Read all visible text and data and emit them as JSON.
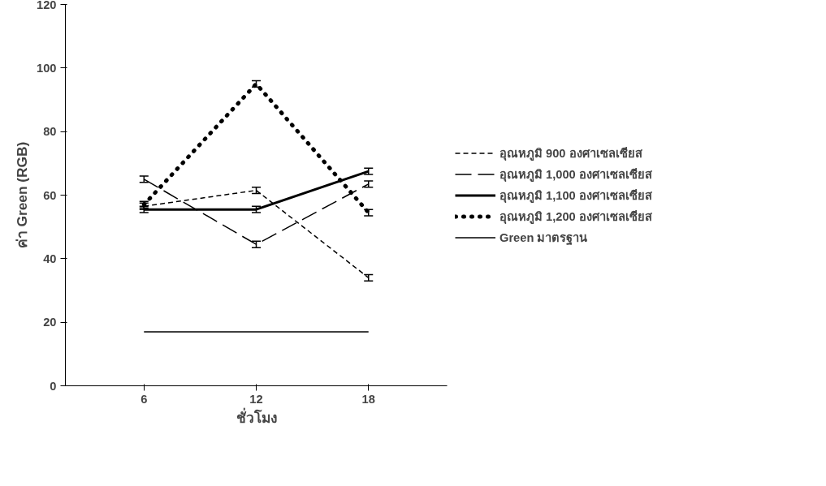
{
  "chart_data": {
    "type": "line",
    "xlabel": "ชั่วโมง",
    "ylabel": "ค่า Green (RGB)",
    "categories": [
      "6",
      "12",
      "18"
    ],
    "ylim": [
      0,
      120
    ],
    "yticks": [
      0,
      20,
      40,
      60,
      80,
      100,
      120
    ],
    "grid": false,
    "legend": "right",
    "marker": "none",
    "series": [
      {
        "name": "อุณหภูมิ 900 องศาเซลเซียส",
        "color": "#000000",
        "line_style": "dashed",
        "values": [
          56.5,
          61.5,
          34
        ],
        "errors": [
          1,
          1,
          1
        ]
      },
      {
        "name": "อุณหภูมิ 1,000 องศาเซลเซียส",
        "color": "#000000",
        "line_style": "dashed",
        "values": [
          65,
          44.5,
          63.5
        ],
        "errors": [
          1,
          1,
          1
        ]
      },
      {
        "name": "อุณหภูมิ 1,100 องศาเซลเซียส",
        "color": "#000000",
        "line_style": "solid",
        "values": [
          55.5,
          55.5,
          67.5
        ],
        "errors": [
          1,
          1,
          1
        ]
      },
      {
        "name": "อุณหภูมิ 1,200 องศาเซลเซียส",
        "color": "#000000",
        "line_style": "dotted",
        "values": [
          57,
          95,
          54.5
        ],
        "errors": [
          1,
          1,
          1
        ]
      },
      {
        "name": "Green มาตรฐาน",
        "color": "#000000",
        "line_style": "solid",
        "values": [
          17,
          17,
          17
        ]
      }
    ]
  }
}
